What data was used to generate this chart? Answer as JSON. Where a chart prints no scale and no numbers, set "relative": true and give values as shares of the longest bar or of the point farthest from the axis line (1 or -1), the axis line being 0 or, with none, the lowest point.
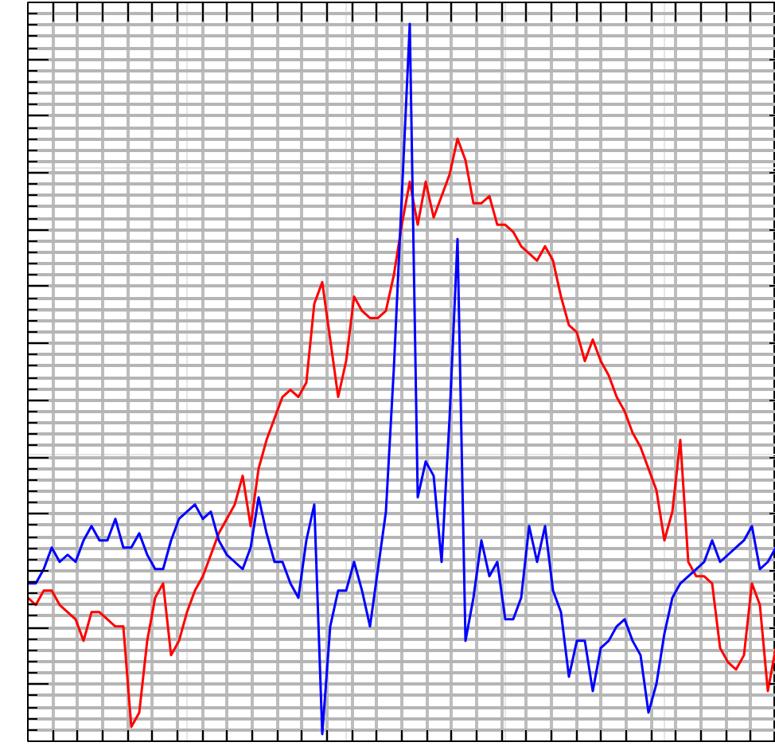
{
  "chart_data": {
    "type": "line",
    "relative": true,
    "grid": true,
    "tick_labels": false,
    "categories": [
      null,
      null,
      null,
      null,
      null,
      null,
      null,
      null,
      null,
      null,
      null,
      null,
      null,
      null,
      null,
      null,
      null,
      null,
      null,
      null,
      null,
      null,
      null,
      null,
      null,
      null,
      null,
      null,
      null,
      null,
      null,
      null,
      null,
      null,
      null,
      null,
      null,
      null,
      null,
      null,
      null,
      null,
      null,
      null,
      null,
      null,
      null,
      null,
      null,
      null,
      null,
      null,
      null,
      null,
      null,
      null,
      null,
      null,
      null,
      null,
      null,
      null,
      null,
      null,
      null,
      null,
      null,
      null,
      null,
      null,
      null,
      null,
      null,
      null,
      null,
      null,
      null,
      null,
      null,
      null,
      null,
      null,
      null,
      null,
      null,
      null,
      null,
      null,
      null,
      null,
      null,
      null,
      null,
      null,
      null
    ],
    "series": [
      {
        "color": "#ff0000",
        "values": [
          0.2,
          0.19,
          0.21,
          0.21,
          0.19,
          0.18,
          0.17,
          0.14,
          0.18,
          0.18,
          0.17,
          0.16,
          0.16,
          0.02,
          0.04,
          0.14,
          0.2,
          0.22,
          0.12,
          0.14,
          0.18,
          0.21,
          0.23,
          0.26,
          0.29,
          0.31,
          0.33,
          0.37,
          0.3,
          0.38,
          0.42,
          0.45,
          0.48,
          0.49,
          0.48,
          0.5,
          0.61,
          0.64,
          0.56,
          0.48,
          0.53,
          0.62,
          0.6,
          0.59,
          0.59,
          0.6,
          0.65,
          0.72,
          0.78,
          0.72,
          0.78,
          0.73,
          0.76,
          0.79,
          0.84,
          0.81,
          0.75,
          0.75,
          0.76,
          0.72,
          0.72,
          0.71,
          0.69,
          0.68,
          0.67,
          0.69,
          0.67,
          0.62,
          0.58,
          0.57,
          0.53,
          0.56,
          0.53,
          0.51,
          0.48,
          0.46,
          0.43,
          0.41,
          0.38,
          0.35,
          0.28,
          0.32,
          0.42,
          0.25,
          0.23,
          0.23,
          0.22,
          0.13,
          0.11,
          0.1,
          0.12,
          0.22,
          0.19,
          0.07,
          0.13
        ]
      },
      {
        "color": "#0000ff",
        "values": [
          0.22,
          0.22,
          0.24,
          0.27,
          0.25,
          0.26,
          0.25,
          0.28,
          0.3,
          0.28,
          0.28,
          0.31,
          0.27,
          0.27,
          0.29,
          0.26,
          0.24,
          0.24,
          0.28,
          0.31,
          0.32,
          0.33,
          0.31,
          0.32,
          0.28,
          0.26,
          0.25,
          0.24,
          0.27,
          0.34,
          0.29,
          0.25,
          0.25,
          0.22,
          0.2,
          0.28,
          0.33,
          0.01,
          0.16,
          0.21,
          0.21,
          0.25,
          0.21,
          0.16,
          0.24,
          0.32,
          0.52,
          0.76,
          1.0,
          0.34,
          0.39,
          0.37,
          0.25,
          0.45,
          0.7,
          0.14,
          0.2,
          0.28,
          0.23,
          0.25,
          0.17,
          0.17,
          0.2,
          0.3,
          0.25,
          0.3,
          0.21,
          0.18,
          0.09,
          0.14,
          0.14,
          0.07,
          0.13,
          0.14,
          0.16,
          0.17,
          0.14,
          0.12,
          0.04,
          0.08,
          0.15,
          0.2,
          0.22,
          0.23,
          0.24,
          0.25,
          0.28,
          0.25,
          0.26,
          0.27,
          0.28,
          0.3,
          0.24,
          0.25,
          0.27
        ]
      }
    ]
  }
}
